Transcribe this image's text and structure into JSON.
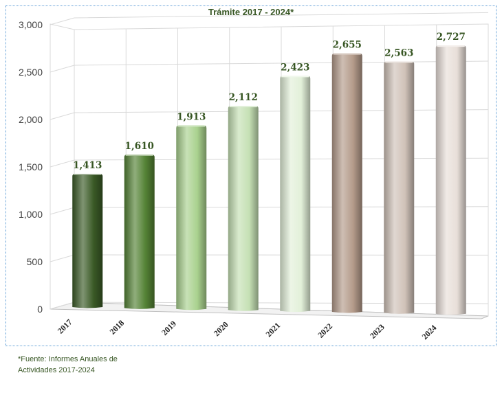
{
  "chart_data": {
    "type": "bar",
    "title": "Trámite 2017 -  2024*",
    "categories": [
      "2017",
      "2018",
      "2019",
      "2020",
      "2021",
      "2022",
      "2023",
      "2024"
    ],
    "values": [
      1413,
      1610,
      1913,
      2112,
      2423,
      2655,
      2563,
      2727
    ],
    "value_labels": [
      "1,413",
      "1,610",
      "1,913",
      "2,112",
      "2,423",
      "2,655",
      "2,563",
      "2,727"
    ],
    "y_ticks": [
      "0",
      "500",
      "1,000",
      "1,500",
      "2,000",
      "2,500",
      "3,000"
    ],
    "y_tick_values": [
      0,
      500,
      1000,
      1500,
      2000,
      2500,
      3000
    ],
    "ylim": [
      0,
      3000
    ],
    "xlabel": "",
    "ylabel": "",
    "grid": true,
    "style": "3d-column",
    "colors": [
      "#3a5a26",
      "#548235",
      "#a9d18e",
      "#c5e0b4",
      "#e2f0d9",
      "#b49b8a",
      "#d0c2b8",
      "#e8dfd9"
    ]
  },
  "footnote": {
    "line1": "*Fuente: Informes Anuales de",
    "line2": "Actividades 2017-2024"
  }
}
